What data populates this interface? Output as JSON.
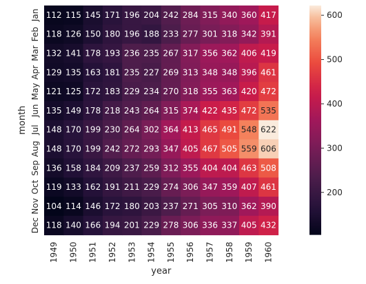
{
  "chart_data": {
    "type": "heatmap",
    "title": "",
    "xlabel": "year",
    "ylabel": "month",
    "x": [
      "1949",
      "1950",
      "1951",
      "1952",
      "1953",
      "1954",
      "1955",
      "1956",
      "1957",
      "1958",
      "1959",
      "1960"
    ],
    "y": [
      "Jan",
      "Feb",
      "Mar",
      "Apr",
      "May",
      "Jun",
      "Jul",
      "Aug",
      "Sep",
      "Oct",
      "Nov",
      "Dec"
    ],
    "values": [
      [
        112,
        115,
        145,
        171,
        196,
        204,
        242,
        284,
        315,
        340,
        360,
        417
      ],
      [
        118,
        126,
        150,
        180,
        196,
        188,
        233,
        277,
        301,
        318,
        342,
        391
      ],
      [
        132,
        141,
        178,
        193,
        236,
        235,
        267,
        317,
        356,
        362,
        406,
        419
      ],
      [
        129,
        135,
        163,
        181,
        235,
        227,
        269,
        313,
        348,
        348,
        396,
        461
      ],
      [
        121,
        125,
        172,
        183,
        229,
        234,
        270,
        318,
        355,
        363,
        420,
        472
      ],
      [
        135,
        149,
        178,
        218,
        243,
        264,
        315,
        374,
        422,
        435,
        472,
        535
      ],
      [
        148,
        170,
        199,
        230,
        264,
        302,
        364,
        413,
        465,
        491,
        548,
        622
      ],
      [
        148,
        170,
        199,
        242,
        272,
        293,
        347,
        405,
        467,
        505,
        559,
        606
      ],
      [
        136,
        158,
        184,
        209,
        237,
        259,
        312,
        355,
        404,
        404,
        463,
        508
      ],
      [
        119,
        133,
        162,
        191,
        211,
        229,
        274,
        306,
        347,
        359,
        407,
        461
      ],
      [
        104,
        114,
        146,
        172,
        180,
        203,
        237,
        271,
        305,
        310,
        362,
        390
      ],
      [
        118,
        140,
        166,
        194,
        201,
        229,
        278,
        306,
        336,
        337,
        405,
        432
      ]
    ],
    "colorbar": {
      "min": 104,
      "max": 622,
      "ticks": [
        200,
        300,
        400,
        500,
        600
      ]
    },
    "colormap": "rocket",
    "annotated": true,
    "grid": false
  }
}
